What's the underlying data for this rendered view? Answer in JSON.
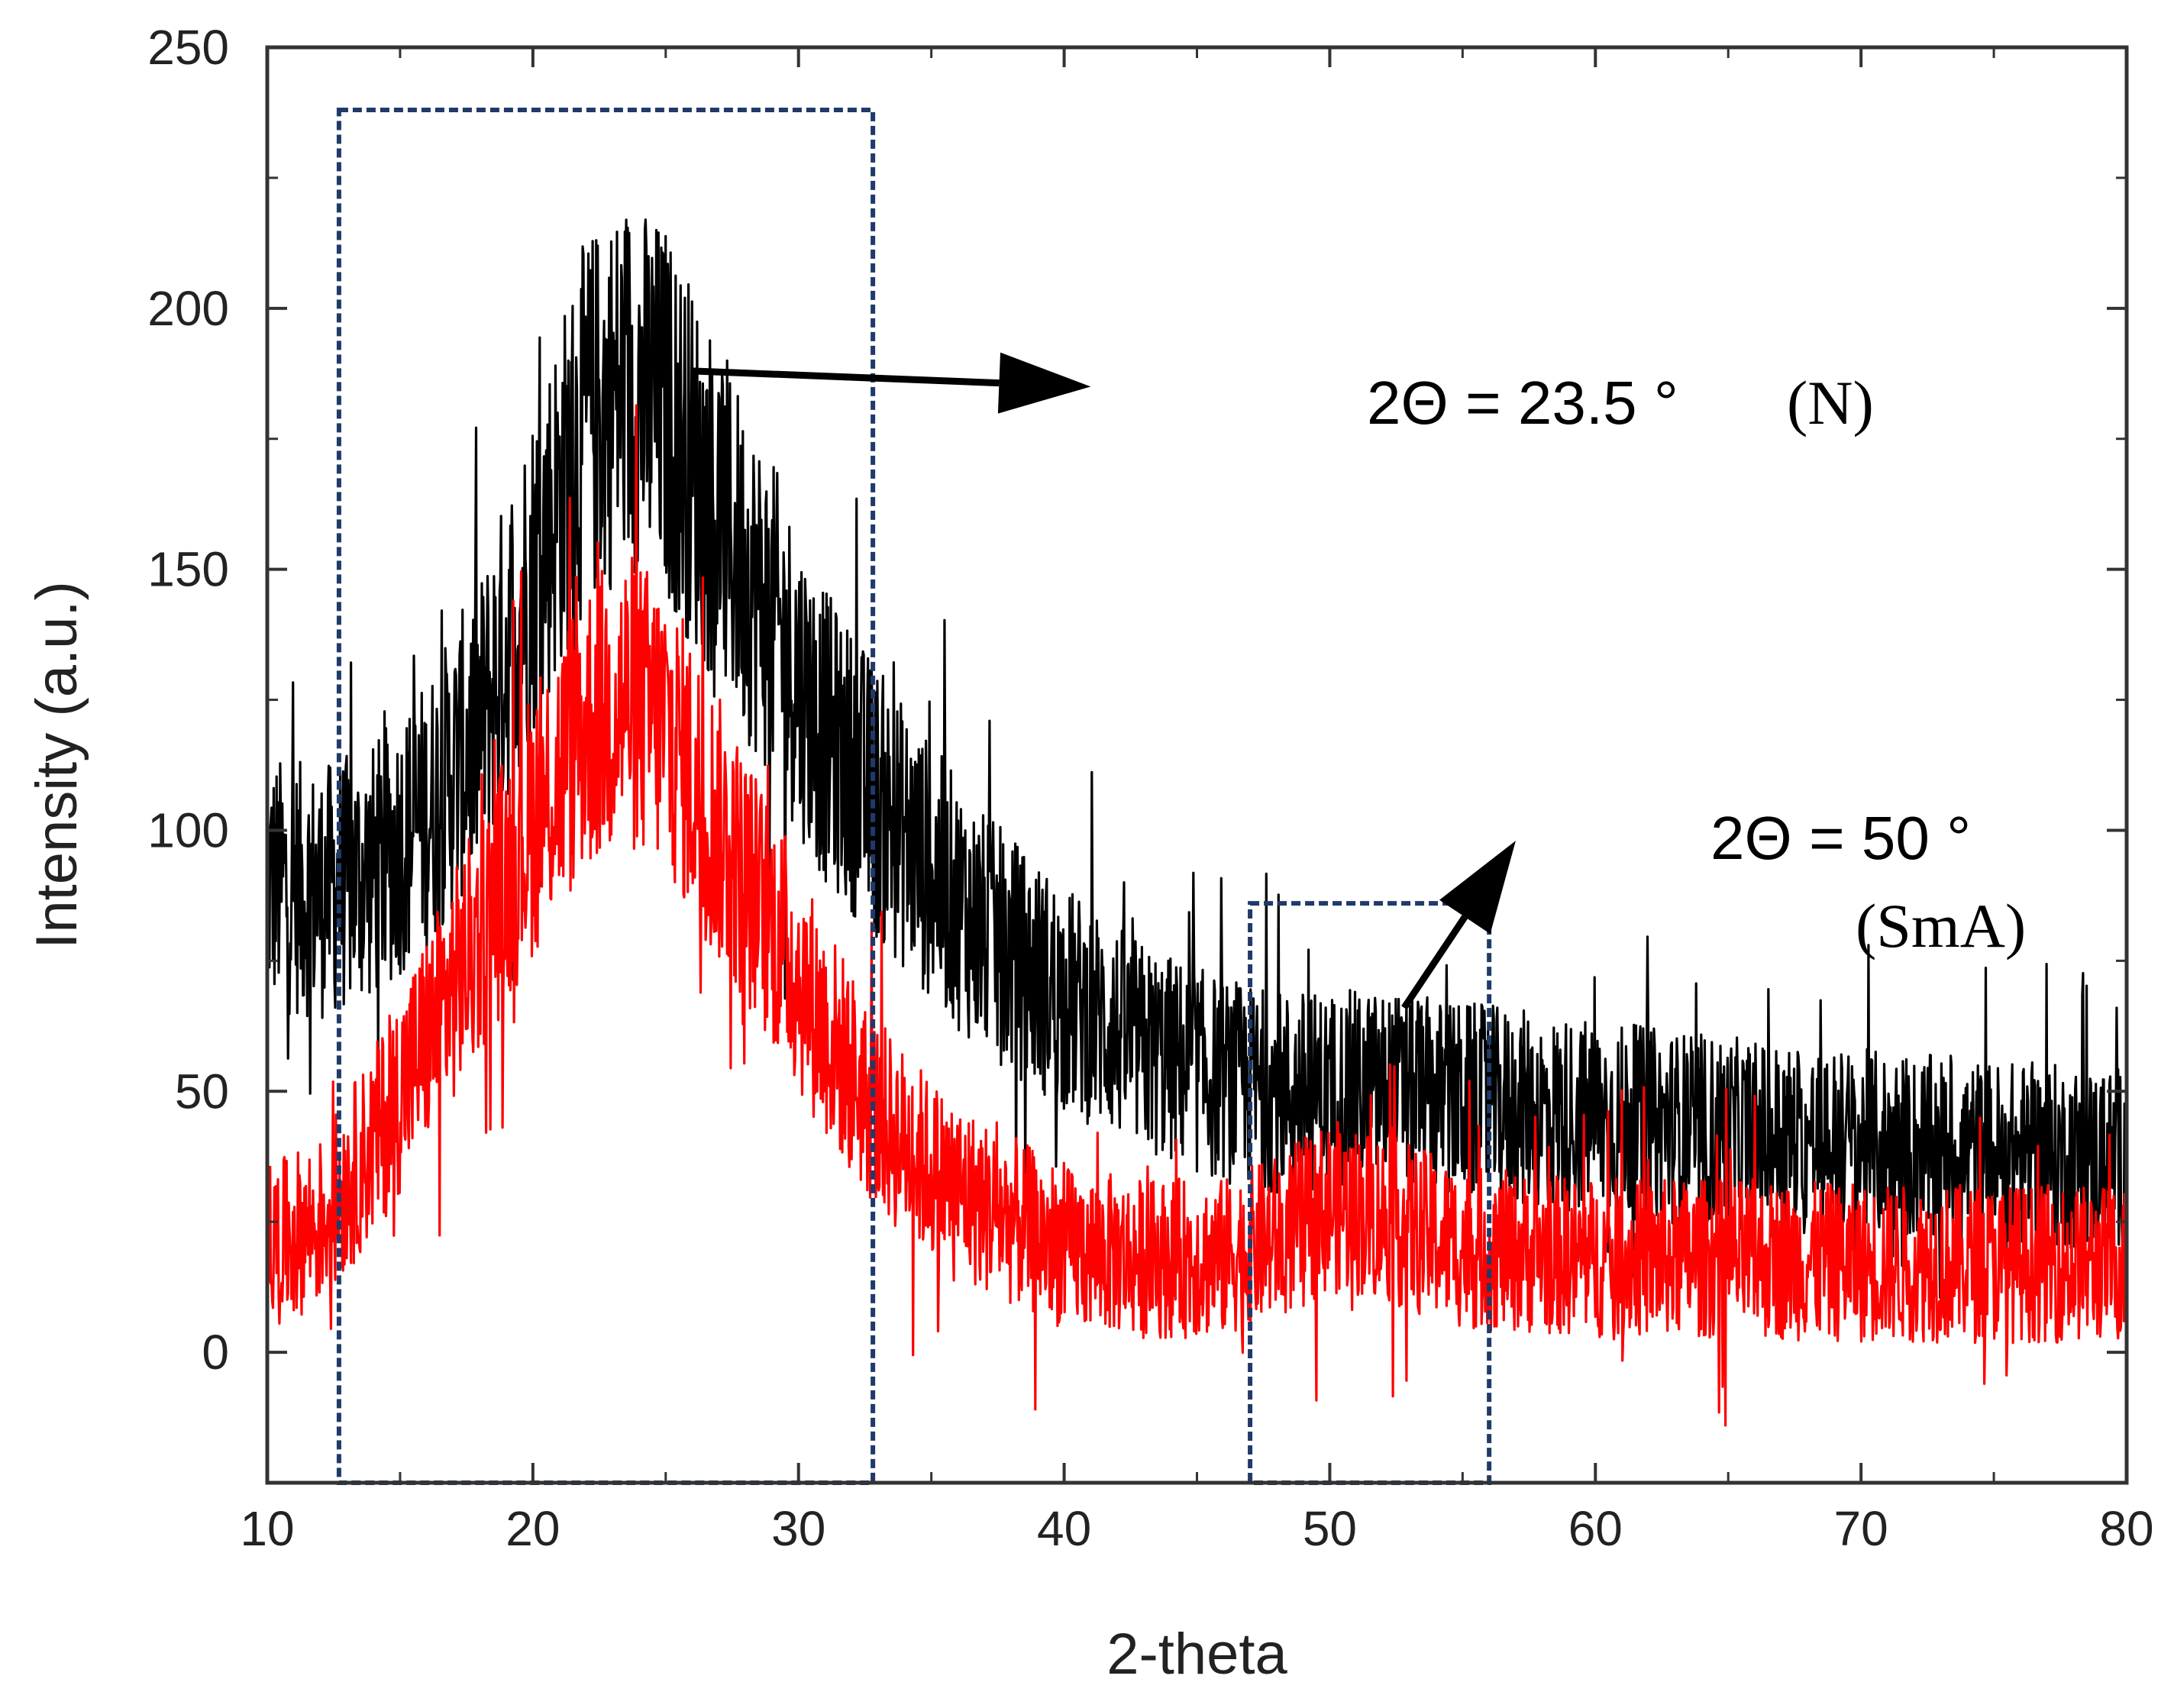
{
  "chart_data": {
    "type": "line",
    "title": "",
    "xlabel": "2-theta",
    "ylabel": "Intensity (a.u.)",
    "xlim": [
      10,
      80
    ],
    "ylim": [
      -25,
      250
    ],
    "xticks": [
      10,
      20,
      30,
      40,
      50,
      60,
      70,
      80
    ],
    "yticks": [
      0,
      50,
      100,
      150,
      200,
      250
    ],
    "xtick_labels": [
      "10",
      "20",
      "30",
      "40",
      "50",
      "60",
      "70",
      "80"
    ],
    "ytick_labels": [
      "0",
      "50",
      "100",
      "150",
      "200",
      "250"
    ],
    "series": [
      {
        "name": "black trace",
        "color": "#000000",
        "x": [
          10,
          12,
          14,
          16,
          18,
          20,
          22,
          23.5,
          25,
          27,
          29,
          31,
          33,
          35,
          37,
          40,
          43,
          46,
          48,
          50,
          52,
          55,
          60,
          65,
          70,
          75,
          80
        ],
        "values": [
          90,
          88,
          92,
          103,
          120,
          150,
          178,
          185,
          180,
          160,
          140,
          118,
          105,
          92,
          80,
          68,
          58,
          52,
          50,
          50,
          50,
          48,
          45,
          42,
          40,
          38,
          37
        ]
      },
      {
        "name": "red trace",
        "color": "#ff0000",
        "x": [
          10,
          12,
          14,
          16,
          18,
          20,
          22,
          23.5,
          25,
          27,
          29,
          31,
          33,
          35,
          37,
          40,
          43,
          46,
          48,
          50,
          52,
          55,
          60,
          65,
          70,
          75,
          80
        ],
        "values": [
          20,
          25,
          40,
          60,
          80,
          102,
          120,
          125,
          120,
          100,
          82,
          62,
          45,
          35,
          28,
          20,
          18,
          18,
          22,
          28,
          26,
          20,
          18,
          18,
          17,
          17,
          17
        ]
      }
    ],
    "regions": [
      {
        "name": "nematic-peak-region",
        "x_range": [
          12.7,
          32.8
        ],
        "y_range": [
          -25,
          238
        ],
        "color": "#1f3a6b"
      },
      {
        "name": "smectic-peak-region",
        "x_range": [
          47,
          56
        ],
        "y_range": [
          -25,
          86
        ],
        "color": "#1f3a6b"
      }
    ],
    "annotations": [
      {
        "math": "2Θ = 23.5 °",
        "label": "(N)",
        "from": [
          26,
          188
        ],
        "to": [
          41,
          185
        ]
      },
      {
        "math": "2Θ = 50 °",
        "label": "(SmA)",
        "from": [
          52.8,
          66
        ],
        "to": [
          57,
          98
        ]
      }
    ]
  }
}
